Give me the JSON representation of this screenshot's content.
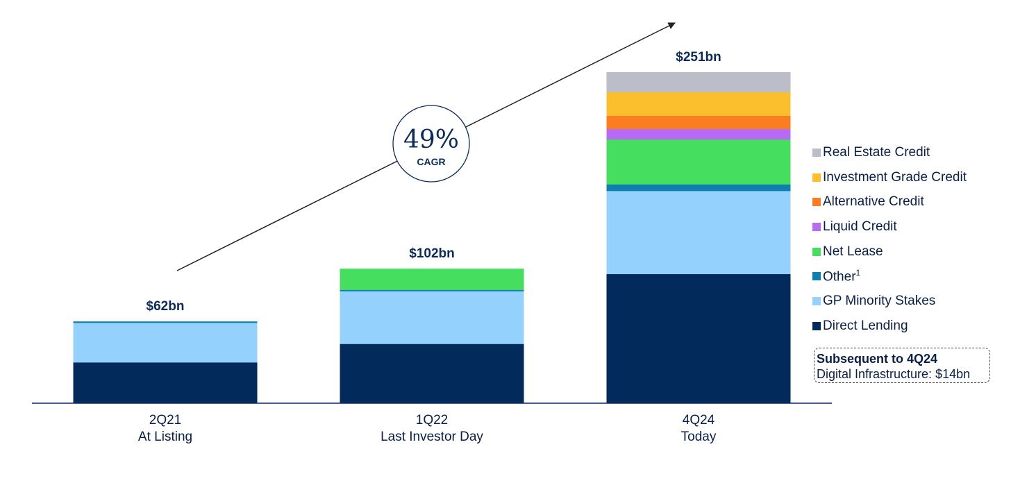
{
  "chart_data": {
    "type": "bar",
    "stacked": true,
    "unit": "$bn",
    "categories": [
      {
        "period": "2Q21",
        "sub": "At Listing",
        "total_label": "$62bn"
      },
      {
        "period": "1Q22",
        "sub": "Last Investor Day",
        "total_label": "$102bn"
      },
      {
        "period": "4Q24",
        "sub": "Today",
        "total_label": "$251bn"
      }
    ],
    "totals": [
      62,
      102,
      251
    ],
    "series": [
      {
        "name": "Direct Lending",
        "color": "#022a5b",
        "values": [
          31,
          45,
          98
        ]
      },
      {
        "name": "GP Minority Stakes",
        "color": "#94d2fd",
        "values": [
          30,
          40,
          63
        ]
      },
      {
        "name": "Other",
        "superscript": "1",
        "color": "#0f7fb0",
        "values": [
          1,
          1,
          5
        ]
      },
      {
        "name": "Net Lease",
        "color": "#45de5f",
        "values": [
          0,
          16,
          34
        ]
      },
      {
        "name": "Liquid Credit",
        "color": "#b66bf2",
        "values": [
          0,
          0,
          8
        ]
      },
      {
        "name": "Alternative Credit",
        "color": "#fb7d22",
        "values": [
          0,
          0,
          10
        ]
      },
      {
        "name": "Investment Grade Credit",
        "color": "#fbbf2d",
        "values": [
          0,
          0,
          18
        ]
      },
      {
        "name": "Real Estate Credit",
        "color": "#bbbec8",
        "values": [
          0,
          0,
          15
        ]
      }
    ],
    "ylim": [
      0,
      251
    ],
    "grid": false,
    "legend_position": "right",
    "annotation": {
      "value": "49%",
      "label": "CAGR"
    }
  },
  "legend": {
    "items": [
      {
        "label": "Real Estate Credit",
        "sup": "",
        "color": "#bbbec8"
      },
      {
        "label": "Investment Grade Credit",
        "sup": "",
        "color": "#fbbf2d"
      },
      {
        "label": "Alternative Credit",
        "sup": "",
        "color": "#fb7d22"
      },
      {
        "label": "Liquid Credit",
        "sup": "",
        "color": "#b66bf2"
      },
      {
        "label": "Net Lease",
        "sup": "",
        "color": "#45de5f"
      },
      {
        "label": "Other",
        "sup": "1",
        "color": "#0f7fb0"
      },
      {
        "label": "GP Minority Stakes",
        "sup": "",
        "color": "#94d2fd"
      },
      {
        "label": "Direct Lending",
        "sup": "",
        "color": "#022a5b"
      }
    ]
  },
  "note": {
    "title": "Subsequent to 4Q24",
    "text": "Digital Infrastructure: $14bn"
  },
  "colors": {
    "axis": "#0a2a5c",
    "text": "#0a2a5c",
    "arrow": "#222222"
  }
}
